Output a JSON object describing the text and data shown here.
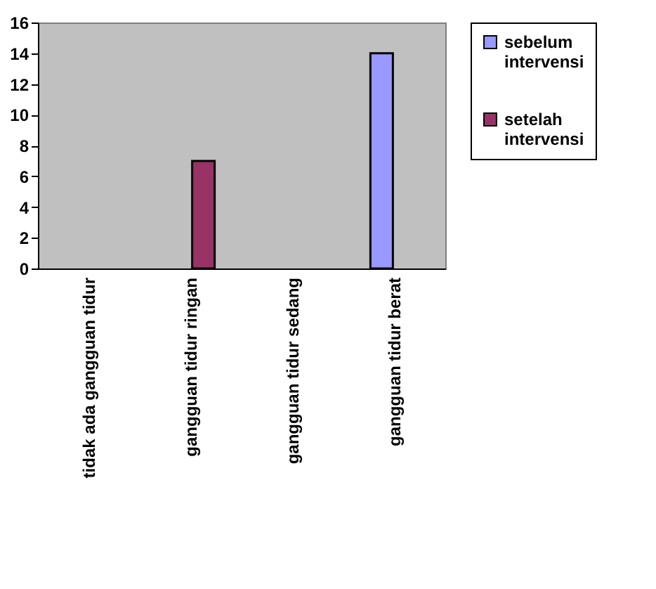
{
  "chart_data": {
    "type": "bar",
    "categories": [
      "tidak ada gangguan tidur",
      "gangguan tidur ringan",
      "gangguan tidur sedang",
      "gangguan tidur berat"
    ],
    "series": [
      {
        "name": "sebelum intervensi",
        "color": "#9999ff",
        "values": [
          0,
          0,
          0,
          14
        ]
      },
      {
        "name": "setelah intervensi",
        "color": "#993366",
        "values": [
          0,
          7,
          0,
          0
        ]
      }
    ],
    "ylim": [
      0,
      16
    ],
    "yticks": [
      0,
      2,
      4,
      6,
      8,
      10,
      12,
      14,
      16
    ],
    "grid": false,
    "legend": "right"
  }
}
